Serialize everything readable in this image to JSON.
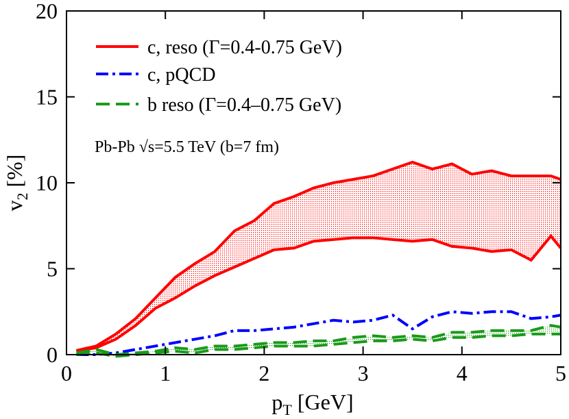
{
  "chart_data": {
    "type": "line",
    "xlabel": [
      "p",
      "T",
      " [GeV]"
    ],
    "ylabel": [
      "v",
      "2",
      " [%]"
    ],
    "annotation": "Pb-Pb  √s=5.5 TeV (b=7 fm)",
    "xlim": [
      0,
      5
    ],
    "ylim": [
      0,
      20
    ],
    "xticks": [
      0,
      1,
      2,
      3,
      4,
      5
    ],
    "yticks": [
      0,
      5,
      10,
      15,
      20
    ],
    "x": [
      0.1,
      0.3,
      0.5,
      0.7,
      0.9,
      1.1,
      1.3,
      1.5,
      1.7,
      1.9,
      2.1,
      2.3,
      2.5,
      2.7,
      2.9,
      3.1,
      3.3,
      3.5,
      3.7,
      3.9,
      4.1,
      4.3,
      4.5,
      4.7,
      4.9,
      5.0
    ],
    "series": [
      {
        "name": "c, reso (Γ=0.4-0.75 GeV)",
        "color": "#ff0000",
        "dash": "solid",
        "upper": [
          0.24,
          0.5,
          1.2,
          2.1,
          3.3,
          4.5,
          5.3,
          6.0,
          7.2,
          7.8,
          8.8,
          9.2,
          9.7,
          10.0,
          10.2,
          10.4,
          10.8,
          11.2,
          10.8,
          11.1,
          10.5,
          10.7,
          10.4,
          10.4,
          10.4,
          10.2
        ],
        "lower": [
          0.2,
          0.4,
          0.9,
          1.7,
          2.7,
          3.3,
          4.0,
          4.6,
          5.1,
          5.6,
          6.1,
          6.2,
          6.6,
          6.7,
          6.8,
          6.8,
          6.7,
          6.6,
          6.7,
          6.3,
          6.2,
          6.0,
          6.1,
          5.5,
          6.9,
          6.2
        ]
      },
      {
        "name": "c, pQCD",
        "color": "#0000ff",
        "dash": "dashdot",
        "values": [
          0.0,
          0.0,
          0.1,
          0.3,
          0.5,
          0.7,
          0.9,
          1.1,
          1.4,
          1.4,
          1.5,
          1.6,
          1.8,
          2.0,
          1.9,
          2.0,
          2.3,
          1.5,
          2.2,
          2.5,
          2.4,
          2.5,
          2.5,
          2.1,
          2.2,
          2.3
        ]
      },
      {
        "name": "b reso (Γ=0.4–0.75 GeV)",
        "color": "#1a9a1a",
        "dash": "dashed",
        "upper": [
          0.1,
          0.3,
          0.0,
          0.1,
          0.2,
          0.4,
          0.3,
          0.5,
          0.5,
          0.6,
          0.7,
          0.7,
          0.8,
          0.8,
          1.0,
          1.1,
          1.0,
          1.1,
          1.0,
          1.3,
          1.3,
          1.4,
          1.4,
          1.4,
          1.7,
          1.6
        ],
        "lower": [
          0.0,
          0.1,
          -0.1,
          0.0,
          0.1,
          0.2,
          0.1,
          0.3,
          0.3,
          0.4,
          0.5,
          0.5,
          0.5,
          0.6,
          0.7,
          0.8,
          0.8,
          0.9,
          0.8,
          1.0,
          1.0,
          1.1,
          1.1,
          1.2,
          1.2,
          1.2
        ]
      }
    ]
  }
}
